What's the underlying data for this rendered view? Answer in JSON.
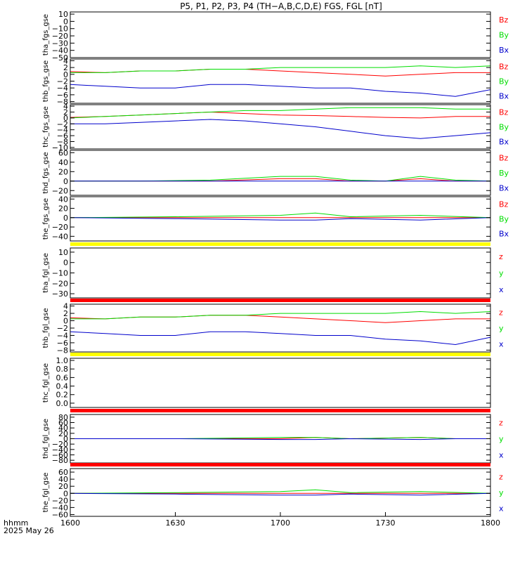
{
  "chart_data": {
    "type": "line",
    "title": "P5, P1, P2, P3, P4 (TH−A,B,C,D,E) FGS, FGL [nT]",
    "x_axis": {
      "label": "hhmm",
      "date": "2025 May 26",
      "ticks": [
        "1600",
        "1630",
        "1700",
        "1730",
        "1800"
      ],
      "range": [
        "16:00",
        "18:00"
      ]
    },
    "panels": [
      {
        "ylabel": "tha_fgs_gse",
        "yticks": [
          "10",
          "0",
          "−10",
          "−20",
          "−30",
          "−40",
          "−50"
        ],
        "ylim": [
          -50,
          13
        ],
        "legend": [
          "Bz",
          "By",
          "Bx"
        ],
        "series": []
      },
      {
        "ylabel": "thb_fgs_gse",
        "yticks": [
          "4",
          "2",
          "0",
          "−2",
          "−4",
          "−6",
          "−8"
        ],
        "ylim": [
          -8.5,
          4.5
        ],
        "legend": [
          "Bz",
          "By",
          "Bx"
        ],
        "series": [
          {
            "name": "Bz",
            "x": [
              1600,
              1610,
              1620,
              1630,
              1640,
              1650,
              1700,
              1710,
              1720,
              1730,
              1740,
              1750,
              1800
            ],
            "y": [
              0.8,
              0.5,
              1.0,
              1.0,
              1.5,
              1.5,
              1.0,
              0.5,
              0.0,
              -0.5,
              0.0,
              0.5,
              0.5
            ]
          },
          {
            "name": "By",
            "x": [
              1600,
              1610,
              1620,
              1630,
              1640,
              1650,
              1700,
              1710,
              1720,
              1730,
              1740,
              1750,
              1800
            ],
            "y": [
              0.5,
              0.5,
              1.0,
              1.0,
              1.5,
              1.5,
              2.0,
              2.0,
              2.0,
              2.0,
              2.5,
              2.0,
              2.5
            ]
          },
          {
            "name": "Bx",
            "x": [
              1600,
              1610,
              1620,
              1630,
              1640,
              1650,
              1700,
              1710,
              1720,
              1730,
              1740,
              1750,
              1800
            ],
            "y": [
              -3,
              -3.5,
              -4,
              -4,
              -3,
              -3,
              -3.5,
              -4,
              -4,
              -5,
              -5.5,
              -6.5,
              -4.5
            ]
          }
        ]
      },
      {
        "ylabel": "thc_fgs_gse",
        "yticks": [
          "4",
          "2",
          "0",
          "−2",
          "−4",
          "−6",
          "−8",
          "−10"
        ],
        "ylim": [
          -10.5,
          4.5
        ],
        "legend": [
          "Bz",
          "By",
          "Bx"
        ],
        "series": [
          {
            "name": "Bz",
            "x": [
              1600,
              1610,
              1620,
              1630,
              1640,
              1650,
              1700,
              1710,
              1720,
              1730,
              1740,
              1750,
              1800
            ],
            "y": [
              0.2,
              0.5,
              1.0,
              1.5,
              2.0,
              1.5,
              1.0,
              0.8,
              0.5,
              0.2,
              0.0,
              0.5,
              0.5
            ]
          },
          {
            "name": "By",
            "x": [
              1600,
              1610,
              1620,
              1630,
              1640,
              1650,
              1700,
              1710,
              1720,
              1730,
              1740,
              1750,
              1800
            ],
            "y": [
              0.0,
              0.5,
              1.0,
              1.5,
              2.0,
              2.5,
              2.5,
              3.0,
              3.5,
              3.5,
              3.5,
              3.0,
              3.0
            ]
          },
          {
            "name": "Bx",
            "x": [
              1600,
              1610,
              1620,
              1630,
              1640,
              1650,
              1700,
              1710,
              1720,
              1730,
              1740,
              1750,
              1800
            ],
            "y": [
              -2,
              -2,
              -1.5,
              -1.0,
              -0.5,
              -1.0,
              -2.0,
              -3.0,
              -4.5,
              -6.0,
              -7.0,
              -6.0,
              -5.0
            ]
          }
        ]
      },
      {
        "ylabel": "thd_fgs_gse",
        "yticks": [
          "60",
          "40",
          "20",
          "0",
          "−20"
        ],
        "ylim": [
          -30,
          65
        ],
        "legend": [
          "Bz",
          "By",
          "Bx"
        ],
        "series": [
          {
            "name": "Bz",
            "x": [
              1600,
              1620,
              1640,
              1700,
              1710,
              1720,
              1730,
              1740,
              1750,
              1800
            ],
            "y": [
              0,
              0,
              0,
              5,
              5,
              0,
              0,
              5,
              0,
              0
            ]
          },
          {
            "name": "By",
            "x": [
              1600,
              1620,
              1640,
              1700,
              1710,
              1720,
              1730,
              1740,
              1750,
              1800
            ],
            "y": [
              0,
              0,
              2,
              10,
              10,
              2,
              0,
              10,
              2,
              0
            ]
          },
          {
            "name": "Bx",
            "x": [
              1600,
              1620,
              1640,
              1700,
              1710,
              1720,
              1730,
              1740,
              1750,
              1800
            ],
            "y": [
              0,
              0,
              0,
              0,
              0,
              0,
              0,
              0,
              0,
              0
            ]
          }
        ]
      },
      {
        "ylabel": "the_fgs_gse",
        "yticks": [
          "40",
          "20",
          "0",
          "−20",
          "−40"
        ],
        "ylim": [
          -50,
          45
        ],
        "legend": [
          "Bz",
          "By",
          "Bx"
        ],
        "series": [
          {
            "name": "Bz",
            "x": [
              1600,
              1630,
              1700,
              1710,
              1720,
              1740,
              1800
            ],
            "y": [
              0,
              0,
              0,
              0,
              0,
              0,
              0
            ]
          },
          {
            "name": "By",
            "x": [
              1600,
              1630,
              1700,
              1710,
              1720,
              1740,
              1800
            ],
            "y": [
              0,
              2,
              5,
              10,
              2,
              5,
              0
            ]
          },
          {
            "name": "Bx",
            "x": [
              1600,
              1630,
              1700,
              1710,
              1720,
              1740,
              1800
            ],
            "y": [
              0,
              -2,
              -5,
              -5,
              -2,
              -5,
              0
            ]
          }
        ]
      },
      {
        "ylabel": "tha_fgl_gse",
        "yticks": [
          "10",
          "0",
          "−10",
          "−20",
          "−30"
        ],
        "ylim": [
          -34,
          14
        ],
        "legend": [
          "z",
          "y",
          "x"
        ],
        "series": []
      },
      {
        "ylabel": "thb_fgl_gse",
        "yticks": [
          "4",
          "2",
          "0",
          "−2",
          "−4",
          "−6",
          "−8"
        ],
        "ylim": [
          -8.5,
          4.5
        ],
        "legend": [
          "z",
          "y",
          "x"
        ],
        "series": [
          {
            "name": "z",
            "x": [
              1600,
              1610,
              1620,
              1630,
              1640,
              1650,
              1700,
              1710,
              1720,
              1730,
              1740,
              1750,
              1800
            ],
            "y": [
              0.8,
              0.5,
              1.0,
              1.0,
              1.5,
              1.5,
              1.0,
              0.5,
              0.0,
              -0.5,
              0.0,
              0.5,
              0.5
            ]
          },
          {
            "name": "y",
            "x": [
              1600,
              1610,
              1620,
              1630,
              1640,
              1650,
              1700,
              1710,
              1720,
              1730,
              1740,
              1750,
              1800
            ],
            "y": [
              0.5,
              0.5,
              1.0,
              1.0,
              1.5,
              1.5,
              2.0,
              2.0,
              2.0,
              2.0,
              2.5,
              2.0,
              2.5
            ]
          },
          {
            "name": "x",
            "x": [
              1600,
              1610,
              1620,
              1630,
              1640,
              1650,
              1700,
              1710,
              1720,
              1730,
              1740,
              1750,
              1800
            ],
            "y": [
              -3,
              -3.5,
              -4,
              -4,
              -3,
              -3,
              -3.5,
              -4,
              -4,
              -5,
              -5.5,
              -6.5,
              -4.5
            ]
          }
        ]
      },
      {
        "ylabel": "thc_fgl_gse",
        "yticks": [
          "1.0",
          "0.8",
          "0.6",
          "0.4",
          "0.2",
          "0.0"
        ],
        "ylim": [
          -0.1,
          1.05
        ],
        "legend": [],
        "series": []
      },
      {
        "ylabel": "thd_fgl_gse",
        "yticks": [
          "80",
          "60",
          "40",
          "20",
          "0",
          "−20",
          "−40",
          "−60",
          "−80"
        ],
        "ylim": [
          -90,
          90
        ],
        "legend": [
          "z",
          "y",
          "x"
        ],
        "series": [
          {
            "name": "z",
            "x": [
              1600,
              1630,
              1700,
              1710,
              1720,
              1740,
              1750,
              1800
            ],
            "y": [
              0,
              0,
              0,
              5,
              0,
              5,
              0,
              0
            ]
          },
          {
            "name": "y",
            "x": [
              1600,
              1630,
              1700,
              1710,
              1720,
              1740,
              1750,
              1800
            ],
            "y": [
              0,
              0,
              5,
              5,
              0,
              5,
              0,
              0
            ]
          },
          {
            "name": "x",
            "x": [
              1600,
              1630,
              1700,
              1710,
              1720,
              1740,
              1750,
              1800
            ],
            "y": [
              0,
              0,
              -3,
              -3,
              0,
              -3,
              0,
              0
            ]
          }
        ]
      },
      {
        "ylabel": "the_fgl_gse",
        "yticks": [
          "60",
          "40",
          "20",
          "0",
          "−20",
          "−40",
          "−60"
        ],
        "ylim": [
          -65,
          70
        ],
        "legend": [
          "z",
          "y",
          "x"
        ],
        "series": [
          {
            "name": "z",
            "x": [
              1600,
              1630,
              1700,
              1710,
              1720,
              1740,
              1800
            ],
            "y": [
              0,
              0,
              0,
              0,
              0,
              0,
              0
            ]
          },
          {
            "name": "y",
            "x": [
              1600,
              1630,
              1700,
              1710,
              1720,
              1740,
              1800
            ],
            "y": [
              0,
              2,
              5,
              10,
              2,
              5,
              0
            ]
          },
          {
            "name": "x",
            "x": [
              1600,
              1630,
              1700,
              1710,
              1720,
              1740,
              1800
            ],
            "y": [
              0,
              -2,
              -5,
              -5,
              -2,
              -5,
              0
            ]
          }
        ]
      }
    ],
    "colors": {
      "Bz": "#ff0000",
      "By": "#00dd00",
      "Bx": "#0000cc",
      "z": "#ff0000",
      "y": "#00dd00",
      "x": "#0000cc",
      "separator_yellow": "#ffff00",
      "separator_red": "#ff0000"
    },
    "grid": false,
    "legend_placement": "right"
  }
}
